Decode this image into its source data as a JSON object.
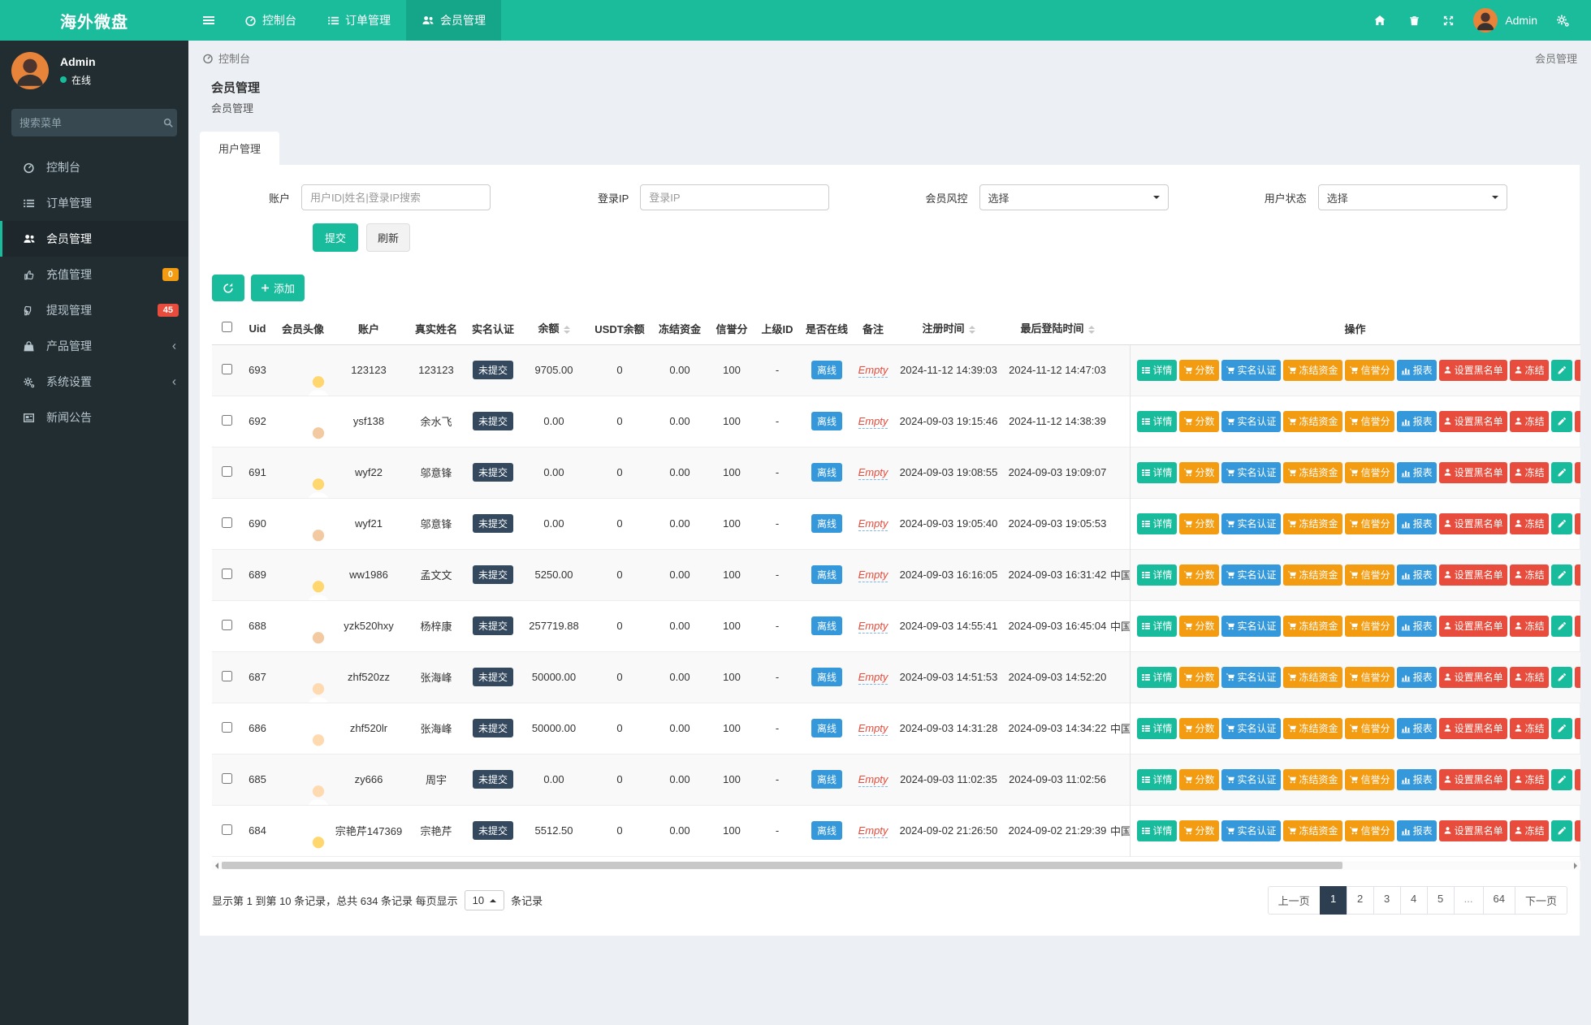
{
  "navbar": {
    "brand": "海外微盘",
    "items": [
      {
        "label": "控制台",
        "icon": "dashboard-icon",
        "active": false
      },
      {
        "label": "订单管理",
        "icon": "orders-icon",
        "active": false
      },
      {
        "label": "会员管理",
        "icon": "members-icon",
        "active": true
      }
    ],
    "user_name": "Admin"
  },
  "sidebar": {
    "user_name": "Admin",
    "user_status": "在线",
    "search_placeholder": "搜索菜单",
    "items": [
      {
        "label": "控制台",
        "icon": "dashboard-icon"
      },
      {
        "label": "订单管理",
        "icon": "orders-icon"
      },
      {
        "label": "会员管理",
        "icon": "members-icon",
        "active": true
      },
      {
        "label": "充值管理",
        "icon": "recharge-icon",
        "badge": "0",
        "badge_color": "#f39c12"
      },
      {
        "label": "提现管理",
        "icon": "withdraw-icon",
        "badge": "45",
        "badge_color": "#e74c3c"
      },
      {
        "label": "产品管理",
        "icon": "products-icon",
        "chevron": true
      },
      {
        "label": "系统设置",
        "icon": "settings-icon",
        "chevron": true
      },
      {
        "label": "新闻公告",
        "icon": "news-icon"
      }
    ]
  },
  "breadcrumb": {
    "location": "控制台",
    "current": "会员管理"
  },
  "page": {
    "title": "会员管理",
    "subtitle": "会员管理",
    "active_tab": "用户管理"
  },
  "filters": {
    "account_label": "账户",
    "account_placeholder": "用户ID|姓名|登录IP搜索",
    "ip_label": "登录IP",
    "ip_placeholder": "登录IP",
    "risk_label": "会员风控",
    "risk_value": "选择",
    "status_label": "用户状态",
    "status_value": "选择",
    "submit_label": "提交",
    "refresh_label": "刷新"
  },
  "toolbar": {
    "add_label": "添加"
  },
  "table": {
    "headers": {
      "uid": "Uid",
      "avatar": "会员头像",
      "account": "账户",
      "real_name": "真实姓名",
      "verified": "实名认证",
      "balance": "余额",
      "usdt": "USDT余额",
      "frozen": "冻结资金",
      "credit": "信誉分",
      "parent": "上级ID",
      "online": "是否在线",
      "remark": "备注",
      "reg_time": "注册时间",
      "last_login": "最后登陆时间",
      "ops": "操作"
    },
    "action_buttons": [
      {
        "label": "详情",
        "icon": "details-icon",
        "color": "#18bc9c"
      },
      {
        "label": "分数",
        "icon": "cart-icon",
        "color": "#f39c12"
      },
      {
        "label": "实名认证",
        "icon": "cart-icon",
        "color": "#3498db"
      },
      {
        "label": "冻结资金",
        "icon": "cart-icon",
        "color": "#f39c12"
      },
      {
        "label": "信誉分",
        "icon": "cart-icon",
        "color": "#f39c12"
      },
      {
        "label": "报表",
        "icon": "chart-icon",
        "color": "#3498db"
      },
      {
        "label": "设置黑名单",
        "icon": "user-icon",
        "color": "#e74c3c"
      },
      {
        "label": "冻结",
        "icon": "user-icon",
        "color": "#e74c3c"
      }
    ],
    "icon_buttons": [
      {
        "name": "edit",
        "icon": "pencil-icon",
        "color": "#18bc9c"
      },
      {
        "name": "delete",
        "icon": "trash-icon",
        "color": "#e74c3c"
      }
    ],
    "rows": [
      {
        "uid": "693",
        "account": "123123",
        "real_name": "123123",
        "verified": "未提交",
        "balance": "9705.00",
        "usdt": "0",
        "frozen": "0.00",
        "credit": "100",
        "parent": "-",
        "online": "离线",
        "remark": "Empty",
        "reg_time": "2024-11-12 14:39:03",
        "last_login": "2024-11-12 14:47:03",
        "region": "",
        "avatar_bg": "#5b9bf8",
        "avatar_head": "#ffd76e"
      },
      {
        "uid": "692",
        "account": "ysf138",
        "real_name": "余水飞",
        "verified": "未提交",
        "balance": "0.00",
        "usdt": "0",
        "frozen": "0.00",
        "credit": "100",
        "parent": "-",
        "online": "离线",
        "remark": "Empty",
        "reg_time": "2024-09-03 19:15:46",
        "last_login": "2024-11-12 14:38:39",
        "region": "",
        "avatar_bg": "#45c5bb",
        "avatar_head": "#f2c9a0"
      },
      {
        "uid": "691",
        "account": "wyf22",
        "real_name": "邬意锋",
        "verified": "未提交",
        "balance": "0.00",
        "usdt": "0",
        "frozen": "0.00",
        "credit": "100",
        "parent": "-",
        "online": "离线",
        "remark": "Empty",
        "reg_time": "2024-09-03 19:08:55",
        "last_login": "2024-09-03 19:09:07",
        "region": "",
        "avatar_bg": "#4da3f5",
        "avatar_head": "#ffd76e"
      },
      {
        "uid": "690",
        "account": "wyf21",
        "real_name": "邬意锋",
        "verified": "未提交",
        "balance": "0.00",
        "usdt": "0",
        "frozen": "0.00",
        "credit": "100",
        "parent": "-",
        "online": "离线",
        "remark": "Empty",
        "reg_time": "2024-09-03 19:05:40",
        "last_login": "2024-09-03 19:05:53",
        "region": "",
        "avatar_bg": "#45c5bb",
        "avatar_head": "#f2c9a0"
      },
      {
        "uid": "689",
        "account": "ww1986",
        "real_name": "孟文文",
        "verified": "未提交",
        "balance": "5250.00",
        "usdt": "0",
        "frozen": "0.00",
        "credit": "100",
        "parent": "-",
        "online": "离线",
        "remark": "Empty",
        "reg_time": "2024-09-03 16:16:05",
        "last_login": "2024-09-03 16:31:42",
        "region": "中国",
        "avatar_bg": "#5b9bf8",
        "avatar_head": "#ffd76e"
      },
      {
        "uid": "688",
        "account": "yzk520hxy",
        "real_name": "杨梓康",
        "verified": "未提交",
        "balance": "257719.88",
        "usdt": "0",
        "frozen": "0.00",
        "credit": "100",
        "parent": "-",
        "online": "离线",
        "remark": "Empty",
        "reg_time": "2024-09-03 14:55:41",
        "last_login": "2024-09-03 16:45:04",
        "region": "中国",
        "avatar_bg": "#45c5bb",
        "avatar_head": "#f2c9a0"
      },
      {
        "uid": "687",
        "account": "zhf520zz",
        "real_name": "张海峰",
        "verified": "未提交",
        "balance": "50000.00",
        "usdt": "0",
        "frozen": "0.00",
        "credit": "100",
        "parent": "-",
        "online": "离线",
        "remark": "Empty",
        "reg_time": "2024-09-03 14:51:53",
        "last_login": "2024-09-03 14:52:20",
        "region": "",
        "avatar_bg": "#f0862e",
        "avatar_head": "#ffd9b0"
      },
      {
        "uid": "686",
        "account": "zhf520lr",
        "real_name": "张海峰",
        "verified": "未提交",
        "balance": "50000.00",
        "usdt": "0",
        "frozen": "0.00",
        "credit": "100",
        "parent": "-",
        "online": "离线",
        "remark": "Empty",
        "reg_time": "2024-09-03 14:31:28",
        "last_login": "2024-09-03 14:34:22",
        "region": "中国",
        "avatar_bg": "#f0862e",
        "avatar_head": "#ffd9b0"
      },
      {
        "uid": "685",
        "account": "zy666",
        "real_name": "周宇",
        "verified": "未提交",
        "balance": "0.00",
        "usdt": "0",
        "frozen": "0.00",
        "credit": "100",
        "parent": "-",
        "online": "离线",
        "remark": "Empty",
        "reg_time": "2024-09-03 11:02:35",
        "last_login": "2024-09-03 11:02:56",
        "region": "",
        "avatar_bg": "#f0862e",
        "avatar_head": "#ffd9b0"
      },
      {
        "uid": "684",
        "account": "宗艳芹147369",
        "real_name": "宗艳芹",
        "verified": "未提交",
        "balance": "5512.50",
        "usdt": "0",
        "frozen": "0.00",
        "credit": "100",
        "parent": "-",
        "online": "离线",
        "remark": "Empty",
        "reg_time": "2024-09-02 21:26:50",
        "last_login": "2024-09-02 21:29:39",
        "region": "中国",
        "avatar_bg": "#5b9bf8",
        "avatar_head": "#ffd76e"
      }
    ]
  },
  "footer": {
    "summary_prefix": "显示第 1 到第 10 条记录，总共 634 条记录 每页显示",
    "page_size": "10",
    "summary_suffix": "条记录",
    "pages": [
      "上一页",
      "1",
      "2",
      "3",
      "4",
      "5",
      "...",
      "64",
      "下一页"
    ],
    "active_page": "1"
  }
}
